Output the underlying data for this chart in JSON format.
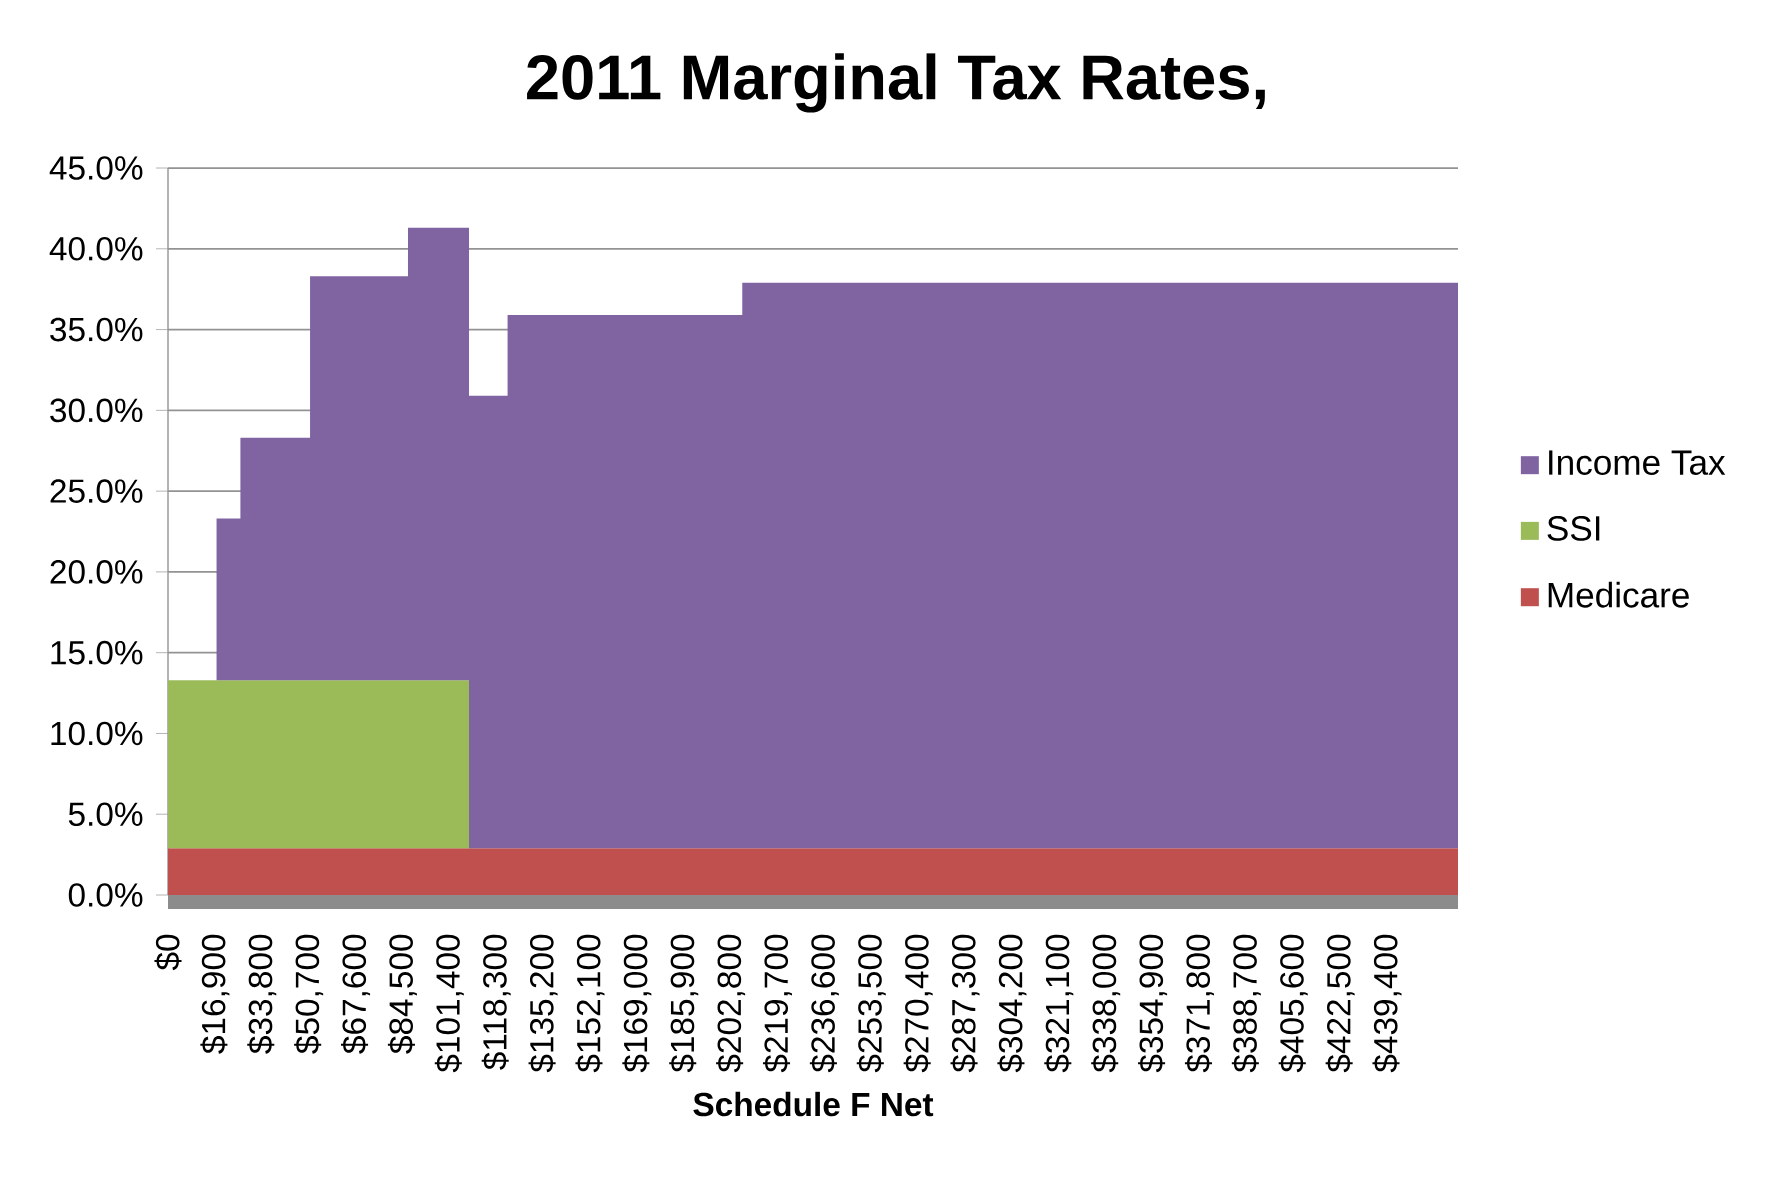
{
  "chart_data": {
    "type": "area",
    "stacked": true,
    "title": "2011 Marginal Tax Rates,",
    "xlabel": "Schedule F Net",
    "x": [
      0,
      17500,
      17500,
      26100,
      26100,
      51200,
      51200,
      86500,
      86500,
      108500,
      108500,
      122400,
      122400,
      207000,
      207000,
      465000
    ],
    "series": [
      {
        "name": "Medicare",
        "color": "#c0504d",
        "values": [
          2.9,
          2.9,
          2.9,
          2.9,
          2.9,
          2.9,
          2.9,
          2.9,
          2.9,
          2.9,
          2.9,
          2.9,
          2.9,
          2.9,
          2.9,
          2.9
        ]
      },
      {
        "name": "SSI",
        "color": "#9bbb59",
        "values": [
          10.4,
          10.4,
          10.4,
          10.4,
          10.4,
          10.4,
          10.4,
          10.4,
          10.4,
          10.4,
          0,
          0,
          0,
          0,
          0,
          0
        ]
      },
      {
        "name": "Income Tax",
        "color": "#8064a2",
        "values": [
          0,
          0,
          10,
          10,
          15,
          15,
          25,
          25,
          28,
          28,
          28,
          28,
          33,
          33,
          35,
          35
        ]
      }
    ],
    "xlim": [
      0,
      465000
    ],
    "xticks": [
      {
        "value": 0,
        "label": "$0"
      },
      {
        "value": 16900,
        "label": "$16,900"
      },
      {
        "value": 33800,
        "label": "$33,800"
      },
      {
        "value": 50700,
        "label": "$50,700"
      },
      {
        "value": 67600,
        "label": "$67,600"
      },
      {
        "value": 84500,
        "label": "$84,500"
      },
      {
        "value": 101400,
        "label": "$101,400"
      },
      {
        "value": 118300,
        "label": "$118,300"
      },
      {
        "value": 135200,
        "label": "$135,200"
      },
      {
        "value": 152100,
        "label": "$152,100"
      },
      {
        "value": 169000,
        "label": "$169,000"
      },
      {
        "value": 185900,
        "label": "$185,900"
      },
      {
        "value": 202800,
        "label": "$202,800"
      },
      {
        "value": 219700,
        "label": "$219,700"
      },
      {
        "value": 236600,
        "label": "$236,600"
      },
      {
        "value": 253500,
        "label": "$253,500"
      },
      {
        "value": 270400,
        "label": "$270,400"
      },
      {
        "value": 287300,
        "label": "$287,300"
      },
      {
        "value": 304200,
        "label": "$304,200"
      },
      {
        "value": 321100,
        "label": "$321,100"
      },
      {
        "value": 338000,
        "label": "$338,000"
      },
      {
        "value": 354900,
        "label": "$354,900"
      },
      {
        "value": 371800,
        "label": "$371,800"
      },
      {
        "value": 388700,
        "label": "$388,700"
      },
      {
        "value": 405600,
        "label": "$405,600"
      },
      {
        "value": 422500,
        "label": "$422,500"
      },
      {
        "value": 439400,
        "label": "$439,400"
      }
    ],
    "ylim": [
      0,
      45
    ],
    "yticks": [
      {
        "value": 0,
        "label": "0.0%"
      },
      {
        "value": 5,
        "label": "5.0%"
      },
      {
        "value": 10,
        "label": "10.0%"
      },
      {
        "value": 15,
        "label": "15.0%"
      },
      {
        "value": 20,
        "label": "20.0%"
      },
      {
        "value": 25,
        "label": "25.0%"
      },
      {
        "value": 30,
        "label": "30.0%"
      },
      {
        "value": 35,
        "label": "35.0%"
      },
      {
        "value": 40,
        "label": "40.0%"
      },
      {
        "value": 45,
        "label": "45.0%"
      }
    ],
    "grid": "y",
    "legend": "right"
  }
}
